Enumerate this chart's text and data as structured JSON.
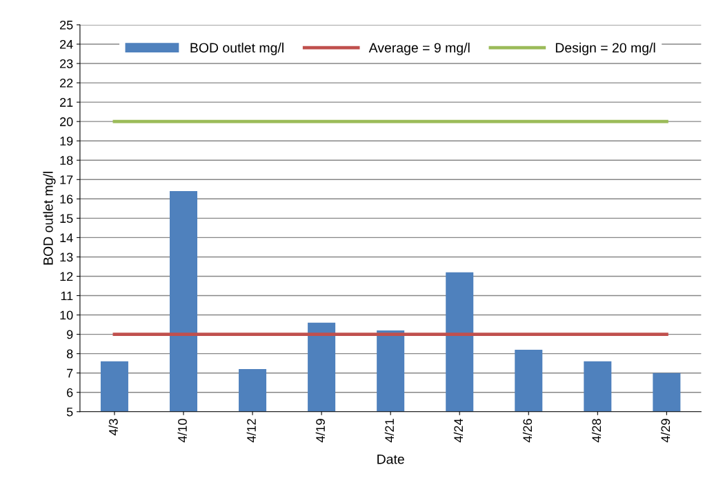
{
  "chart_data": {
    "type": "bar",
    "xlabel": "Date",
    "ylabel": "BOD outlet mg/l",
    "categories": [
      "4/3",
      "4/10",
      "4/12",
      "4/19",
      "4/21",
      "4/24",
      "4/26",
      "4/28",
      "4/29"
    ],
    "series": [
      {
        "name": "BOD outlet mg/l",
        "color": "#4f81bd",
        "values": [
          7.6,
          16.4,
          7.2,
          9.6,
          9.2,
          12.2,
          8.2,
          7.6,
          7.0
        ]
      },
      {
        "name": "Average = 9 mg/l",
        "type": "line",
        "color": "#c0504d",
        "values": [
          9,
          9,
          9,
          9,
          9,
          9,
          9,
          9,
          9
        ]
      },
      {
        "name": "Design = 20 mg/l",
        "type": "line",
        "color": "#9bbb59",
        "values": [
          20,
          20,
          20,
          20,
          20,
          20,
          20,
          20,
          20
        ]
      }
    ],
    "ylim": [
      5,
      25
    ],
    "yticks": [
      5,
      6,
      7,
      8,
      9,
      10,
      11,
      12,
      13,
      14,
      15,
      16,
      17,
      18,
      19,
      20,
      21,
      22,
      23,
      24,
      25
    ],
    "grid": "y",
    "legend": "top",
    "marker": "none"
  }
}
